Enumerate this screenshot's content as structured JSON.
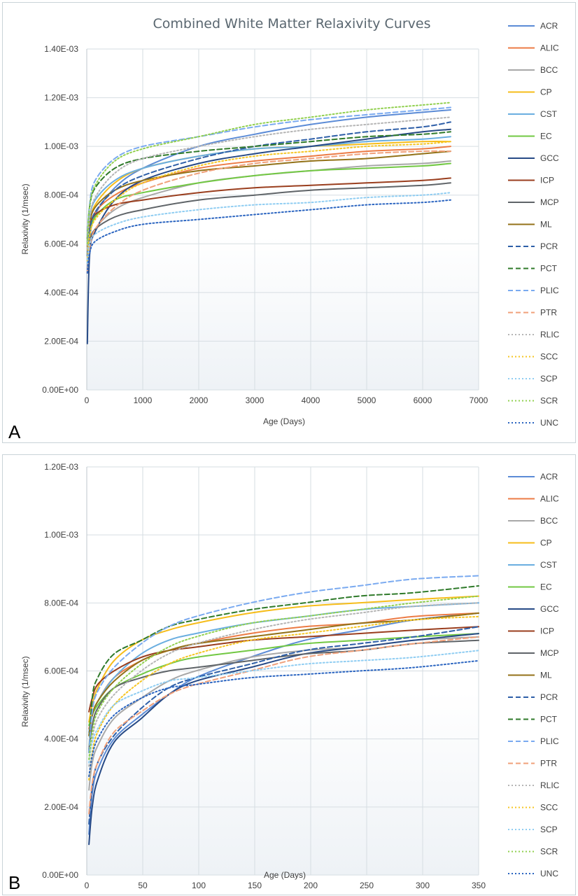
{
  "legend_items": [
    {
      "name": "ACR",
      "color": "#5b8bd6",
      "dash": "solid"
    },
    {
      "name": "ALIC",
      "color": "#ec7b45",
      "dash": "solid"
    },
    {
      "name": "BCC",
      "color": "#a8a8a8",
      "dash": "solid"
    },
    {
      "name": "CP",
      "color": "#f6bd1b",
      "dash": "solid"
    },
    {
      "name": "CST",
      "color": "#6aaee0",
      "dash": "solid"
    },
    {
      "name": "EC",
      "color": "#72c843",
      "dash": "solid"
    },
    {
      "name": "GCC",
      "color": "#274a86",
      "dash": "solid"
    },
    {
      "name": "ICP",
      "color": "#9a3e1e",
      "dash": "solid"
    },
    {
      "name": "MCP",
      "color": "#5f6468",
      "dash": "solid"
    },
    {
      "name": "ML",
      "color": "#937218",
      "dash": "solid"
    },
    {
      "name": "PCR",
      "color": "#2e5fa8",
      "dash": "dash"
    },
    {
      "name": "PCT",
      "color": "#2f7a2a",
      "dash": "dash"
    },
    {
      "name": "PLIC",
      "color": "#7aaaf0",
      "dash": "dash"
    },
    {
      "name": "PTR",
      "color": "#f0a07a",
      "dash": "dash"
    },
    {
      "name": "RLIC",
      "color": "#b5b5b5",
      "dash": "dot"
    },
    {
      "name": "SCC",
      "color": "#f6c623",
      "dash": "dot"
    },
    {
      "name": "SCP",
      "color": "#8fcdf2",
      "dash": "dot"
    },
    {
      "name": "SCR",
      "color": "#92d050",
      "dash": "dot"
    },
    {
      "name": "UNC",
      "color": "#2a64c0",
      "dash": "dot"
    }
  ],
  "chart_data": [
    {
      "panel_label": "A",
      "type": "line",
      "title": "Combined White Matter Relaxivity Curves",
      "xlabel": "Age (Days)",
      "ylabel": "Relaxivity (1/msec)",
      "xlim": [
        0,
        7000
      ],
      "ylim": [
        0,
        0.0014
      ],
      "x_ticks": [
        "0",
        "1000",
        "2000",
        "3000",
        "4000",
        "5000",
        "6000",
        "7000"
      ],
      "y_ticks": [
        "0.00E+00",
        "2.00E-04",
        "4.00E-04",
        "6.00E-04",
        "8.00E-04",
        "1.00E-03",
        "1.20E-03",
        "1.40E-03"
      ],
      "grid": true,
      "legend_position": "right",
      "x": [
        10,
        50,
        150,
        500,
        1000,
        2000,
        3000,
        4000,
        5000,
        6000,
        6500
      ],
      "series": [
        {
          "name": "ACR",
          "values": [
            0.00052,
            0.00062,
            0.00072,
            0.00083,
            0.00091,
            0.001,
            0.00105,
            0.00109,
            0.00112,
            0.00114,
            0.00115
          ]
        },
        {
          "name": "ALIC",
          "values": [
            0.00055,
            0.00065,
            0.00073,
            0.0008,
            0.00085,
            0.00091,
            0.00094,
            0.00096,
            0.00098,
            0.00099,
            0.001
          ]
        },
        {
          "name": "BCC",
          "values": [
            0.0005,
            0.00058,
            0.00066,
            0.00074,
            0.00079,
            0.00085,
            0.00088,
            0.0009,
            0.00092,
            0.00093,
            0.00094
          ]
        },
        {
          "name": "CP",
          "values": [
            0.00058,
            0.00068,
            0.00076,
            0.00085,
            0.00091,
            0.00096,
            0.00099,
            0.001,
            0.00101,
            0.00102,
            0.00102
          ]
        },
        {
          "name": "CST",
          "values": [
            0.00058,
            0.0007,
            0.00078,
            0.00086,
            0.00091,
            0.00096,
            0.00099,
            0.001,
            0.00102,
            0.00103,
            0.00104
          ]
        },
        {
          "name": "EC",
          "values": [
            0.00055,
            0.00064,
            0.00071,
            0.00078,
            0.00081,
            0.00085,
            0.00088,
            0.0009,
            0.00091,
            0.00092,
            0.00093
          ]
        },
        {
          "name": "GCC",
          "values": [
            0.00019,
            0.00055,
            0.00065,
            0.00078,
            0.00086,
            0.00093,
            0.00097,
            0.001,
            0.00103,
            0.00106,
            0.00107
          ]
        },
        {
          "name": "ICP",
          "values": [
            0.00061,
            0.00067,
            0.00072,
            0.00076,
            0.00078,
            0.00081,
            0.00083,
            0.00084,
            0.00085,
            0.00086,
            0.00087
          ]
        },
        {
          "name": "MCP",
          "values": [
            0.00056,
            0.00061,
            0.00066,
            0.00071,
            0.00074,
            0.00078,
            0.0008,
            0.00082,
            0.00083,
            0.00084,
            0.00085
          ]
        },
        {
          "name": "ML",
          "values": [
            0.00059,
            0.00068,
            0.00075,
            0.00082,
            0.00086,
            0.0009,
            0.00092,
            0.00094,
            0.00095,
            0.00097,
            0.00098
          ]
        },
        {
          "name": "PCR",
          "values": [
            0.00055,
            0.00065,
            0.00073,
            0.00082,
            0.00088,
            0.00095,
            0.001,
            0.00103,
            0.00106,
            0.00108,
            0.0011
          ]
        },
        {
          "name": "PCT",
          "values": [
            0.00062,
            0.00075,
            0.00083,
            0.00091,
            0.00095,
            0.00098,
            0.001,
            0.00102,
            0.00104,
            0.00105,
            0.00106
          ]
        },
        {
          "name": "PLIC",
          "values": [
            0.0006,
            0.00076,
            0.00086,
            0.00095,
            0.001,
            0.00104,
            0.00108,
            0.00111,
            0.00113,
            0.00115,
            0.00116
          ]
        },
        {
          "name": "PTR",
          "values": [
            0.00048,
            0.00058,
            0.00066,
            0.00075,
            0.00082,
            0.00089,
            0.00093,
            0.00095,
            0.00097,
            0.00098,
            0.00098
          ]
        },
        {
          "name": "RLIC",
          "values": [
            0.00058,
            0.0007,
            0.00079,
            0.00089,
            0.00095,
            0.001,
            0.00104,
            0.00107,
            0.00109,
            0.00111,
            0.00112
          ]
        },
        {
          "name": "SCC",
          "values": [
            0.00053,
            0.00063,
            0.0007,
            0.00078,
            0.00085,
            0.00092,
            0.00096,
            0.00098,
            0.001,
            0.00101,
            0.00102
          ]
        },
        {
          "name": "SCP",
          "values": [
            0.00052,
            0.0006,
            0.00064,
            0.00068,
            0.00071,
            0.00074,
            0.00076,
            0.00077,
            0.00079,
            0.0008,
            0.00081
          ]
        },
        {
          "name": "SCR",
          "values": [
            0.0006,
            0.00075,
            0.00084,
            0.00094,
            0.00099,
            0.00104,
            0.00109,
            0.00112,
            0.00115,
            0.00117,
            0.00118
          ]
        },
        {
          "name": "UNC",
          "values": [
            0.00048,
            0.00056,
            0.00061,
            0.00065,
            0.00068,
            0.0007,
            0.00072,
            0.00074,
            0.00076,
            0.00077,
            0.00078
          ]
        }
      ]
    },
    {
      "panel_label": "B",
      "type": "line",
      "title": "",
      "xlabel": "Age (Days)",
      "ylabel": "Relaxivity (1/msec)",
      "xlim": [
        0,
        360
      ],
      "ylim": [
        0,
        0.0012
      ],
      "x_ticks": [
        "0",
        "50",
        "100",
        "150",
        "200",
        "250",
        "300",
        "350"
      ],
      "y_ticks": [
        "0.00E+00",
        "2.00E-04",
        "4.00E-04",
        "6.00E-04",
        "8.00E-04",
        "1.00E-03",
        "1.20E-03"
      ],
      "grid": true,
      "legend_position": "right",
      "x": [
        2,
        5,
        10,
        25,
        50,
        75,
        100,
        150,
        200,
        250,
        300,
        360
      ],
      "series": [
        {
          "name": "ACR",
          "values": [
            0.00012,
            0.00024,
            0.00031,
            0.0004,
            0.00047,
            0.00053,
            0.00058,
            0.00064,
            0.00069,
            0.00072,
            0.00075,
            0.00077
          ]
        },
        {
          "name": "ALIC",
          "values": [
            0.00043,
            0.00047,
            0.00051,
            0.00058,
            0.00063,
            0.00066,
            0.00068,
            0.00071,
            0.00073,
            0.00074,
            0.00076,
            0.00077
          ]
        },
        {
          "name": "BCC",
          "values": [
            0.00025,
            0.00033,
            0.00038,
            0.00046,
            0.00052,
            0.00057,
            0.0006,
            0.00064,
            0.00066,
            0.00067,
            0.00069,
            0.0007
          ]
        },
        {
          "name": "CP",
          "values": [
            0.00045,
            0.0005,
            0.00055,
            0.00063,
            0.00069,
            0.00072,
            0.00074,
            0.00077,
            0.00079,
            0.0008,
            0.00081,
            0.00082
          ]
        },
        {
          "name": "CST",
          "values": [
            0.00042,
            0.00047,
            0.00051,
            0.00058,
            0.00065,
            0.00069,
            0.00071,
            0.00074,
            0.00076,
            0.00078,
            0.00079,
            0.0008
          ]
        },
        {
          "name": "EC",
          "values": [
            0.00044,
            0.00047,
            0.0005,
            0.00055,
            0.00059,
            0.00062,
            0.00064,
            0.00066,
            0.00068,
            0.00069,
            0.0007,
            0.00071
          ]
        },
        {
          "name": "GCC",
          "values": [
            9e-05,
            0.0002,
            0.00028,
            0.00039,
            0.00046,
            0.00053,
            0.00057,
            0.00061,
            0.00065,
            0.00067,
            0.00069,
            0.00071
          ]
        },
        {
          "name": "ICP",
          "values": [
            0.00048,
            0.00052,
            0.00056,
            0.0006,
            0.00064,
            0.00066,
            0.00067,
            0.00069,
            0.0007,
            0.00071,
            0.00072,
            0.00073
          ]
        },
        {
          "name": "MCP",
          "values": [
            0.00037,
            0.00044,
            0.00049,
            0.00055,
            0.00058,
            0.0006,
            0.00061,
            0.00063,
            0.00065,
            0.00066,
            0.00068,
            0.00069
          ]
        },
        {
          "name": "ML",
          "values": [
            0.00041,
            0.00047,
            0.00051,
            0.00057,
            0.00063,
            0.00066,
            0.00068,
            0.0007,
            0.00072,
            0.00074,
            0.00075,
            0.00077
          ]
        },
        {
          "name": "PCR",
          "values": [
            0.00015,
            0.00026,
            0.00033,
            0.00041,
            0.00049,
            0.00055,
            0.00058,
            0.00062,
            0.00066,
            0.00068,
            0.0007,
            0.00073
          ]
        },
        {
          "name": "PCT",
          "values": [
            0.00036,
            0.00052,
            0.00058,
            0.00065,
            0.00069,
            0.00073,
            0.00075,
            0.00078,
            0.0008,
            0.00082,
            0.00083,
            0.00085
          ]
        },
        {
          "name": "PLIC",
          "values": [
            0.00036,
            0.00048,
            0.00054,
            0.00061,
            0.00068,
            0.00073,
            0.00076,
            0.0008,
            0.00083,
            0.00085,
            0.00087,
            0.00088
          ]
        },
        {
          "name": "PTR",
          "values": [
            0.00018,
            0.00027,
            0.00033,
            0.00042,
            0.00048,
            0.00053,
            0.00056,
            0.0006,
            0.00064,
            0.00066,
            0.00068,
            0.0007
          ]
        },
        {
          "name": "RLIC",
          "values": [
            0.00032,
            0.0004,
            0.00046,
            0.00053,
            0.0006,
            0.00065,
            0.00068,
            0.00072,
            0.00075,
            0.00077,
            0.00079,
            0.0008
          ]
        },
        {
          "name": "SCC",
          "values": [
            0.00028,
            0.00036,
            0.00042,
            0.0005,
            0.00057,
            0.00062,
            0.00065,
            0.00069,
            0.00071,
            0.00073,
            0.00075,
            0.00076
          ]
        },
        {
          "name": "SCP",
          "values": [
            0.00033,
            0.00039,
            0.00043,
            0.0005,
            0.00054,
            0.00057,
            0.00058,
            0.0006,
            0.00062,
            0.00063,
            0.00064,
            0.00066
          ]
        },
        {
          "name": "SCR",
          "values": [
            0.00034,
            0.00042,
            0.00048,
            0.00055,
            0.00062,
            0.00067,
            0.0007,
            0.00074,
            0.00076,
            0.00078,
            0.0008,
            0.00082
          ]
        },
        {
          "name": "UNC",
          "values": [
            0.00029,
            0.00035,
            0.0004,
            0.00047,
            0.00052,
            0.00055,
            0.00056,
            0.00058,
            0.00059,
            0.0006,
            0.00061,
            0.00063
          ]
        }
      ]
    }
  ]
}
